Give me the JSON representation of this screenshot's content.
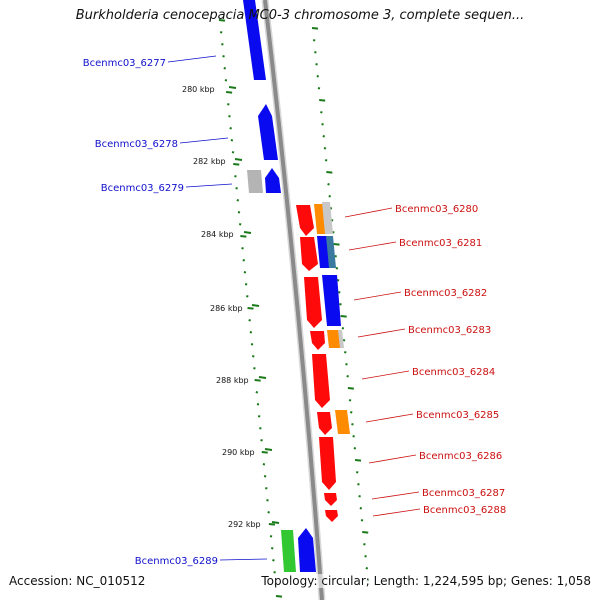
{
  "title": "Burkholderia cenocepacia MC0-3 chromosome 3, complete sequen...",
  "accession": "Accession: NC_010512",
  "summary": "Topology: circular; Length: 1,224,595 bp; Genes: 1,058",
  "colors": {
    "backbone": "#8a8a8a",
    "tick": "#1a7a1a",
    "left_label": "#1010cc",
    "right_label": "#cc1010",
    "blue": "#0a0af0",
    "red": "#ff0a0a",
    "orange": "#ff8c00",
    "gray": "#b4b4b4",
    "green": "#32c832"
  },
  "scale_labels": [
    {
      "text": "280 kbp"
    },
    {
      "text": "282 kbp"
    },
    {
      "text": "284 kbp"
    },
    {
      "text": "286 kbp"
    },
    {
      "text": "288 kbp"
    },
    {
      "text": "290 kbp"
    },
    {
      "text": "292 kbp"
    }
  ],
  "left_genes": [
    {
      "label": "Bcenmc03_6277"
    },
    {
      "label": "Bcenmc03_6278"
    },
    {
      "label": "Bcenmc03_6279"
    },
    {
      "label": "Bcenmc03_6289"
    }
  ],
  "right_genes": [
    {
      "label": "Bcenmc03_6280"
    },
    {
      "label": "Bcenmc03_6281"
    },
    {
      "label": "Bcenmc03_6282"
    },
    {
      "label": "Bcenmc03_6283"
    },
    {
      "label": "Bcenmc03_6284"
    },
    {
      "label": "Bcenmc03_6285"
    },
    {
      "label": "Bcenmc03_6286"
    },
    {
      "label": "Bcenmc03_6287"
    },
    {
      "label": "Bcenmc03_6288"
    }
  ]
}
